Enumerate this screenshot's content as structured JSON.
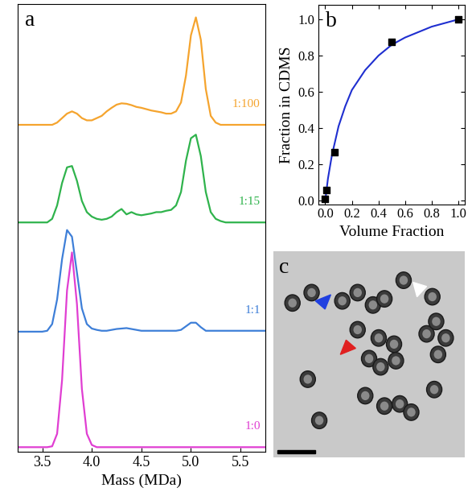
{
  "chart_data": [
    {
      "type": "line",
      "annotations": [
        "a"
      ],
      "xlabel": "Mass (MDa)",
      "x": [
        3.25,
        3.3,
        3.35,
        3.4,
        3.45,
        3.5,
        3.55,
        3.6,
        3.65,
        3.7,
        3.75,
        3.8,
        3.85,
        3.9,
        3.95,
        4.0,
        4.05,
        4.1,
        4.15,
        4.2,
        4.25,
        4.3,
        4.35,
        4.4,
        4.45,
        4.5,
        4.55,
        4.6,
        4.65,
        4.7,
        4.75,
        4.8,
        4.85,
        4.9,
        4.95,
        5.0,
        5.05,
        5.1,
        5.15,
        5.2,
        5.25,
        5.3,
        5.35,
        5.4,
        5.45,
        5.5,
        5.55,
        5.6,
        5.65,
        5.7,
        5.75
      ],
      "series": [
        {
          "name": "1:100",
          "color": "#f5a42e",
          "values": [
            7.3,
            7.3,
            7.3,
            7.3,
            7.3,
            7.3,
            7.3,
            7.3,
            7.35,
            7.45,
            7.55,
            7.6,
            7.55,
            7.45,
            7.4,
            7.4,
            7.45,
            7.5,
            7.6,
            7.68,
            7.75,
            7.78,
            7.77,
            7.74,
            7.7,
            7.68,
            7.65,
            7.62,
            7.6,
            7.58,
            7.55,
            7.55,
            7.6,
            7.8,
            8.4,
            9.3,
            9.7,
            9.2,
            8.1,
            7.5,
            7.35,
            7.3,
            7.3,
            7.3,
            7.3,
            7.3,
            7.3,
            7.3,
            7.3,
            7.3,
            7.3
          ]
        },
        {
          "name": "1:15",
          "color": "#2fb34c",
          "values": [
            5.12,
            5.12,
            5.12,
            5.12,
            5.12,
            5.12,
            5.12,
            5.2,
            5.5,
            6.0,
            6.35,
            6.38,
            6.05,
            5.6,
            5.35,
            5.25,
            5.2,
            5.18,
            5.2,
            5.25,
            5.35,
            5.42,
            5.3,
            5.35,
            5.3,
            5.28,
            5.3,
            5.32,
            5.35,
            5.35,
            5.38,
            5.4,
            5.5,
            5.8,
            6.5,
            7.0,
            7.08,
            6.6,
            5.8,
            5.35,
            5.2,
            5.15,
            5.12,
            5.12,
            5.12,
            5.12,
            5.12,
            5.12,
            5.12,
            5.12,
            5.12
          ]
        },
        {
          "name": "1:1",
          "color": "#3e7fd8",
          "values": [
            2.68,
            2.68,
            2.68,
            2.68,
            2.68,
            2.68,
            2.7,
            2.85,
            3.4,
            4.3,
            4.95,
            4.8,
            4.0,
            3.2,
            2.85,
            2.75,
            2.72,
            2.7,
            2.7,
            2.72,
            2.74,
            2.75,
            2.76,
            2.74,
            2.72,
            2.7,
            2.7,
            2.7,
            2.7,
            2.7,
            2.7,
            2.7,
            2.7,
            2.72,
            2.8,
            2.88,
            2.88,
            2.78,
            2.7,
            2.7,
            2.7,
            2.7,
            2.7,
            2.7,
            2.7,
            2.7,
            2.7,
            2.7,
            2.7,
            2.7,
            2.7
          ]
        },
        {
          "name": "1:0",
          "color": "#e03ed2",
          "values": [
            0.1,
            0.1,
            0.1,
            0.1,
            0.1,
            0.1,
            0.1,
            0.12,
            0.4,
            1.6,
            3.6,
            4.45,
            3.3,
            1.4,
            0.4,
            0.15,
            0.1,
            0.1,
            0.1,
            0.1,
            0.1,
            0.1,
            0.1,
            0.1,
            0.1,
            0.1,
            0.1,
            0.1,
            0.1,
            0.1,
            0.1,
            0.1,
            0.1,
            0.1,
            0.1,
            0.1,
            0.1,
            0.1,
            0.1,
            0.1,
            0.1,
            0.1,
            0.1,
            0.1,
            0.1,
            0.1,
            0.1,
            0.1,
            0.1,
            0.1,
            0.1
          ]
        }
      ],
      "xlim": [
        3.25,
        5.75
      ],
      "xticks": [
        3.5,
        4.0,
        4.5,
        5.0,
        5.5
      ],
      "ylim": [
        0,
        10
      ],
      "yticks": [],
      "tick_labels": "x"
    },
    {
      "type": "scatter",
      "annotations": [
        "b"
      ],
      "xlabel": "Volume Fraction",
      "ylabel": "Fraction in CDMS",
      "series": [
        {
          "type": "scatter",
          "color": "#000000",
          "marker": "s",
          "x": [
            0.0,
            0.01,
            0.067,
            0.5,
            1.0
          ],
          "values": [
            0.01,
            0.06,
            0.265,
            0.875,
            1.0
          ]
        },
        {
          "type": "line",
          "color": "#1f2fd0",
          "x": [
            0.0,
            0.02,
            0.05,
            0.1,
            0.15,
            0.2,
            0.3,
            0.4,
            0.5,
            0.6,
            0.7,
            0.8,
            0.9,
            1.0
          ],
          "values": [
            0.0,
            0.12,
            0.25,
            0.41,
            0.52,
            0.61,
            0.72,
            0.8,
            0.86,
            0.9,
            0.93,
            0.96,
            0.98,
            1.0
          ]
        }
      ],
      "xlim": [
        -0.05,
        1.05
      ],
      "xticks": [
        0.0,
        0.2,
        0.4,
        0.6,
        0.8,
        1.0
      ],
      "ylim": [
        -0.02,
        1.08
      ],
      "yticks": [
        0.0,
        0.2,
        0.4,
        0.6,
        0.8,
        1.0
      ]
    }
  ],
  "image_panel": {
    "label": "c"
  }
}
